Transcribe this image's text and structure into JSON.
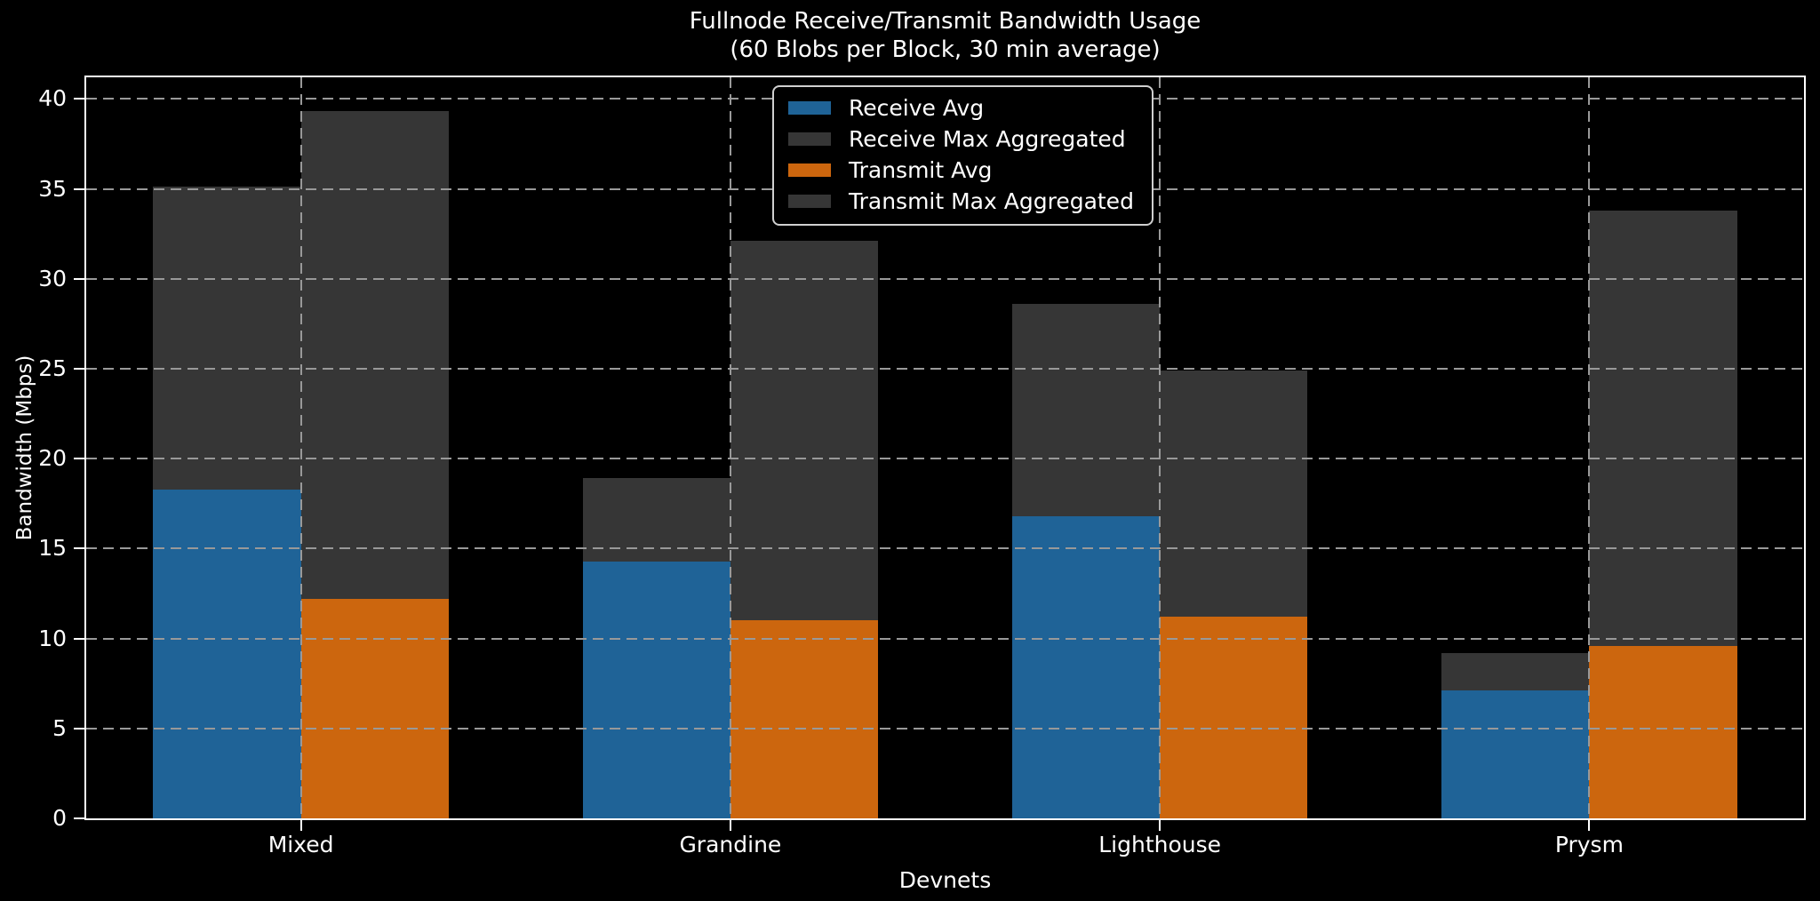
{
  "chart_data": {
    "type": "bar",
    "title": "Fullnode Receive/Transmit Bandwidth Usage (60 Blobs per Block, 30 min average)",
    "title_line1": "Fullnode Receive/Transmit Bandwidth Usage",
    "title_line2": "(60 Blobs per Block, 30 min average)",
    "xlabel": "Devnets",
    "ylabel": "Bandwidth (Mbps)",
    "categories": [
      "Mixed",
      "Grandine",
      "Lighthouse",
      "Prysm"
    ],
    "series": [
      {
        "name": "Receive Avg",
        "color": "#1f6397",
        "role": "front",
        "slot": "receive",
        "values": [
          18.3,
          14.3,
          16.8,
          7.1
        ]
      },
      {
        "name": "Receive Max Aggregated",
        "color": "#363636",
        "role": "back",
        "slot": "receive",
        "values": [
          35.1,
          18.9,
          28.6,
          9.2
        ]
      },
      {
        "name": "Transmit Avg",
        "color": "#cc660e",
        "role": "front",
        "slot": "transmit",
        "values": [
          12.2,
          11.0,
          11.2,
          9.6
        ]
      },
      {
        "name": "Transmit Max Aggregated",
        "color": "#363636",
        "role": "back",
        "slot": "transmit",
        "values": [
          39.3,
          32.1,
          24.9,
          33.8
        ]
      }
    ],
    "ylim": [
      0,
      41.2
    ],
    "yticks": [
      0,
      5,
      10,
      15,
      20,
      25,
      30,
      35,
      40
    ],
    "grid": true,
    "grid_style": "dashed",
    "legend_position": "upper center-left",
    "colors": {
      "background": "#000000",
      "text": "#ffffff",
      "grid": "#999999",
      "spine": "#ffffff",
      "legend_border": "#d0d0d0"
    }
  }
}
